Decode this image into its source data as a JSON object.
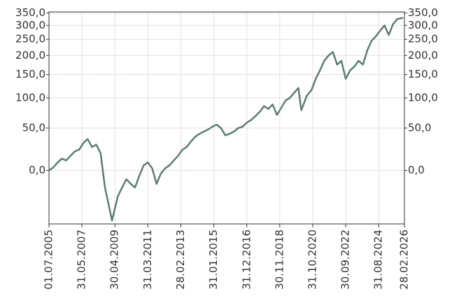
{
  "chart_data": {
    "type": "line",
    "x": [
      "2005-07",
      "2005-10",
      "2006-01",
      "2006-04",
      "2006-07",
      "2006-10",
      "2007-01",
      "2007-04",
      "2007-07",
      "2007-10",
      "2008-01",
      "2008-04",
      "2008-07",
      "2008-10",
      "2009-01",
      "2009-03",
      "2009-07",
      "2009-10",
      "2010-01",
      "2010-04",
      "2010-07",
      "2010-10",
      "2011-01",
      "2011-04",
      "2011-07",
      "2011-10",
      "2012-01",
      "2012-04",
      "2012-07",
      "2012-10",
      "2013-01",
      "2013-04",
      "2013-07",
      "2013-10",
      "2014-01",
      "2014-04",
      "2014-07",
      "2014-10",
      "2015-01",
      "2015-04",
      "2015-07",
      "2015-10",
      "2016-01",
      "2016-04",
      "2016-07",
      "2016-10",
      "2017-01",
      "2017-04",
      "2017-07",
      "2017-10",
      "2018-01",
      "2018-04",
      "2018-07",
      "2018-10",
      "2019-01",
      "2019-04",
      "2019-07",
      "2019-10",
      "2020-01",
      "2020-03",
      "2020-07",
      "2020-10",
      "2021-01",
      "2021-04",
      "2021-07",
      "2021-10",
      "2022-01",
      "2022-04",
      "2022-07",
      "2022-10",
      "2023-01",
      "2023-04",
      "2023-07",
      "2023-10",
      "2024-01",
      "2024-04",
      "2024-07",
      "2024-10",
      "2025-01",
      "2025-04",
      "2025-07",
      "2025-10",
      "2026-02"
    ],
    "series": [
      {
        "color": "#5b7f6e",
        "values": [
          0,
          3,
          8,
          12,
          10,
          15,
          20,
          22,
          30,
          35,
          25,
          28,
          18,
          -15,
          -30,
          -38,
          -22,
          -15,
          -8,
          -12,
          -15,
          -5,
          5,
          8,
          2,
          -12,
          -3,
          2,
          5,
          10,
          15,
          22,
          25,
          32,
          38,
          42,
          45,
          48,
          52,
          55,
          50,
          40,
          42,
          45,
          50,
          52,
          58,
          62,
          68,
          75,
          85,
          80,
          88,
          70,
          82,
          95,
          100,
          110,
          120,
          78,
          105,
          115,
          140,
          160,
          185,
          200,
          210,
          175,
          185,
          140,
          160,
          170,
          185,
          175,
          215,
          245,
          260,
          280,
          300,
          265,
          305,
          325,
          330
        ]
      }
    ],
    "yscale": "log",
    "log_offset": 100,
    "ylim": [
      -40,
      355
    ],
    "yticks": [
      {
        "value": 0,
        "label": "0,0"
      },
      {
        "value": 50,
        "label": "50,0"
      },
      {
        "value": 100,
        "label": "100,0"
      },
      {
        "value": 150,
        "label": "150,0"
      },
      {
        "value": 200,
        "label": "200,0"
      },
      {
        "value": 250,
        "label": "250,0"
      },
      {
        "value": 300,
        "label": "300,0"
      },
      {
        "value": 350,
        "label": "350,0"
      }
    ],
    "xlim": [
      "2005-07-01",
      "2026-02-28"
    ],
    "xticks": [
      {
        "value": "2005-07-01",
        "label": "01.07.2005"
      },
      {
        "value": "2007-05-31",
        "label": "31.05.2007"
      },
      {
        "value": "2009-04-30",
        "label": "30.04.2009"
      },
      {
        "value": "2011-03-31",
        "label": "31.03.2011"
      },
      {
        "value": "2013-02-28",
        "label": "28.02.2013"
      },
      {
        "value": "2015-01-31",
        "label": "31.01.2015"
      },
      {
        "value": "2016-12-31",
        "label": "31.12.2016"
      },
      {
        "value": "2018-11-30",
        "label": "30.11.2018"
      },
      {
        "value": "2020-10-31",
        "label": "31.10.2020"
      },
      {
        "value": "2022-09-30",
        "label": "30.09.2022"
      },
      {
        "value": "2024-08-31",
        "label": "31.08.2024"
      },
      {
        "value": "2026-02-28",
        "label": "28.02.2026"
      }
    ],
    "grid": true
  }
}
